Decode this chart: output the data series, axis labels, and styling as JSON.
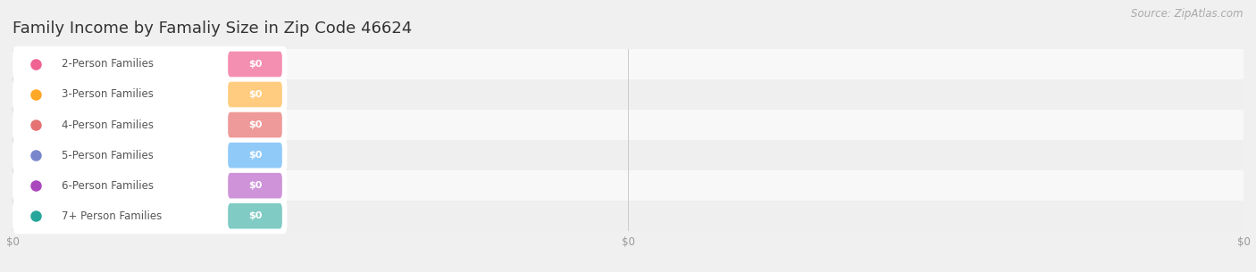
{
  "title": "Family Income by Famaliy Size in Zip Code 46624",
  "source": "Source: ZipAtlas.com",
  "categories": [
    "2-Person Families",
    "3-Person Families",
    "4-Person Families",
    "5-Person Families",
    "6-Person Families",
    "7+ Person Families"
  ],
  "values": [
    0,
    0,
    0,
    0,
    0,
    0
  ],
  "bar_colors": [
    "#f48fb1",
    "#ffcc80",
    "#ef9a9a",
    "#90caf9",
    "#ce93d8",
    "#80cbc4"
  ],
  "dot_colors": [
    "#f06292",
    "#ffa726",
    "#e57373",
    "#7986cb",
    "#ab47bc",
    "#26a69a"
  ],
  "background_color": "#f0f0f0",
  "row_bg_even": "#f8f8f8",
  "row_bg_odd": "#efefef",
  "title_fontsize": 13,
  "label_fontsize": 8.5,
  "value_fontsize": 8,
  "source_fontsize": 8.5
}
